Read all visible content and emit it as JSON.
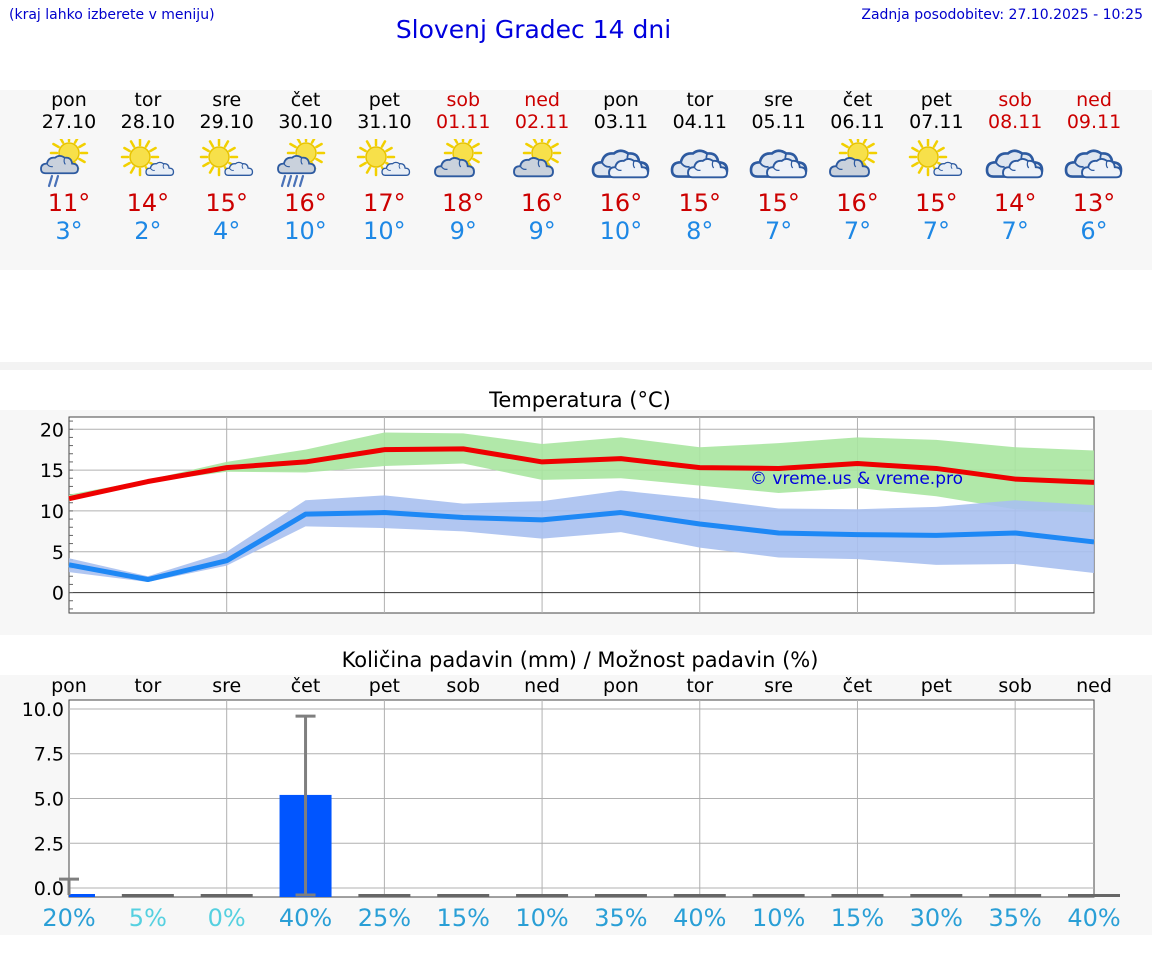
{
  "header": {
    "menu_hint": "(kraj lahko izberete v meniju)",
    "title": "Slovenj Gradec 14 dni",
    "updated": "Zadnja posodobitev: 27.10.2025 - 10:25"
  },
  "days": [
    {
      "name": "pon",
      "date": "27.10",
      "icon": "sun-cloud-rain-icon",
      "max": "11°",
      "min": "3°",
      "weekend": false
    },
    {
      "name": "tor",
      "date": "28.10",
      "icon": "sun-small-cloud-icon",
      "max": "14°",
      "min": "2°",
      "weekend": false
    },
    {
      "name": "sre",
      "date": "29.10",
      "icon": "sun-small-cloud-icon",
      "max": "15°",
      "min": "4°",
      "weekend": false
    },
    {
      "name": "čet",
      "date": "30.10",
      "icon": "sun-cloud-heavy-rain-icon",
      "max": "16°",
      "min": "10°",
      "weekend": false
    },
    {
      "name": "pet",
      "date": "31.10",
      "icon": "sun-small-cloud-icon",
      "max": "17°",
      "min": "10°",
      "weekend": false
    },
    {
      "name": "sob",
      "date": "01.11",
      "icon": "sun-cloud-icon",
      "max": "18°",
      "min": "9°",
      "weekend": true
    },
    {
      "name": "ned",
      "date": "02.11",
      "icon": "sun-cloud-icon",
      "max": "16°",
      "min": "9°",
      "weekend": true
    },
    {
      "name": "pon",
      "date": "03.11",
      "icon": "cloudy-icon",
      "max": "16°",
      "min": "10°",
      "weekend": false
    },
    {
      "name": "tor",
      "date": "04.11",
      "icon": "cloudy-icon",
      "max": "15°",
      "min": "8°",
      "weekend": false
    },
    {
      "name": "sre",
      "date": "05.11",
      "icon": "cloudy-icon",
      "max": "15°",
      "min": "7°",
      "weekend": false
    },
    {
      "name": "čet",
      "date": "06.11",
      "icon": "sun-cloud-icon",
      "max": "16°",
      "min": "7°",
      "weekend": false
    },
    {
      "name": "pet",
      "date": "07.11",
      "icon": "sun-small-cloud-icon",
      "max": "15°",
      "min": "7°",
      "weekend": false
    },
    {
      "name": "sob",
      "date": "08.11",
      "icon": "cloudy-icon",
      "max": "14°",
      "min": "7°",
      "weekend": true
    },
    {
      "name": "ned",
      "date": "09.11",
      "icon": "cloudy-icon",
      "max": "13°",
      "min": "6°",
      "weekend": true
    }
  ],
  "colors": {
    "max_line": "#ee0000",
    "max_band": "#a8e6a0",
    "min_line": "#1e88f5",
    "min_band": "#a8c0f0",
    "bar": "#0055ff",
    "error": "#7f7f7f",
    "grid": "#b0b0b0",
    "pct": "#2a9fd6",
    "pct_low": "#55d0e0"
  },
  "chart_data": [
    {
      "type": "line",
      "title": "Temperatura (°C)",
      "watermark": "© vreme.us & vreme.pro",
      "ylim": [
        -2.5,
        21.5
      ],
      "yticks": [
        0,
        5,
        10,
        15,
        20
      ],
      "x": [
        0,
        1,
        2,
        3,
        4,
        5,
        6,
        7,
        8,
        9,
        10,
        11,
        12,
        13
      ],
      "series": [
        {
          "name": "max",
          "values": [
            11.5,
            13.6,
            15.3,
            16.0,
            17.5,
            17.6,
            16.0,
            16.4,
            15.3,
            15.2,
            15.8,
            15.2,
            13.9,
            13.5
          ],
          "band_low": [
            11.2,
            13.5,
            14.8,
            14.7,
            15.5,
            15.8,
            13.8,
            14.0,
            13.1,
            12.2,
            12.8,
            11.8,
            10.2,
            9.8
          ],
          "band_high": [
            12.0,
            13.8,
            16.0,
            17.5,
            19.6,
            19.5,
            18.2,
            19.0,
            17.8,
            18.3,
            19.0,
            18.7,
            17.8,
            17.4
          ]
        },
        {
          "name": "min",
          "values": [
            3.4,
            1.6,
            3.9,
            9.6,
            9.8,
            9.2,
            8.9,
            9.8,
            8.4,
            7.3,
            7.1,
            7.0,
            7.3,
            6.2
          ],
          "band_low": [
            2.5,
            1.3,
            3.3,
            8.1,
            7.9,
            7.5,
            6.6,
            7.4,
            5.5,
            4.3,
            4.1,
            3.4,
            3.5,
            2.4
          ],
          "band_high": [
            4.2,
            2.0,
            5.0,
            11.3,
            11.9,
            10.9,
            11.2,
            12.5,
            11.5,
            10.3,
            10.2,
            10.5,
            11.3,
            10.7
          ]
        }
      ]
    },
    {
      "type": "bar",
      "title": "Količina padavin (mm) / Možnost padavin (%)",
      "ylim": [
        -0.5,
        10.5
      ],
      "yticks": [
        0.0,
        2.5,
        5.0,
        7.5,
        10.0
      ],
      "ytick_labels": [
        "0.0",
        "2.5",
        "5.0",
        "7.5",
        "10.0"
      ],
      "categories": [
        "pon",
        "tor",
        "sre",
        "čet",
        "pet",
        "sob",
        "ned",
        "pon",
        "tor",
        "sre",
        "čet",
        "pet",
        "sob",
        "ned"
      ],
      "values": [
        0.0,
        0,
        0,
        5.2,
        0,
        0,
        0,
        0,
        0,
        0,
        0,
        0,
        0,
        0
      ],
      "error_low": [
        0,
        0,
        0,
        0.0,
        0,
        0,
        0,
        0,
        0,
        0,
        0,
        0,
        0,
        0
      ],
      "error_high": [
        0.5,
        0,
        0,
        9.6,
        0,
        0,
        0,
        0,
        0,
        0,
        0,
        0,
        0,
        0
      ],
      "probability": [
        "20%",
        "5%",
        "0%",
        "40%",
        "25%",
        "15%",
        "10%",
        "35%",
        "40%",
        "10%",
        "15%",
        "30%",
        "35%",
        "40%"
      ]
    }
  ]
}
